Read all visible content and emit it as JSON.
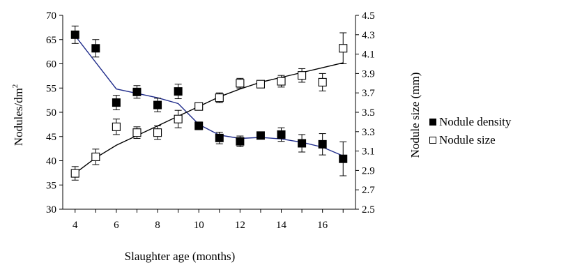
{
  "chart_data": {
    "type": "scatter",
    "xlabel": "Slaughter age (months)",
    "ylabel_left_main": "Nodules/dm",
    "ylabel_left_sup": "2",
    "ylabel_right": "Nodule size (mm)",
    "xlim": [
      3.4,
      17.6
    ],
    "x_ticks": [
      4,
      6,
      8,
      10,
      12,
      14,
      16
    ],
    "y_left_lim": [
      30,
      70
    ],
    "y_left_ticks": [
      30,
      35,
      40,
      45,
      50,
      55,
      60,
      65,
      70
    ],
    "y_right_lim": [
      2.5,
      4.5
    ],
    "y_right_ticks": [
      "2.5",
      "2.7",
      "2.9",
      "3.1",
      "3.3",
      "3.5",
      "3.7",
      "3.9",
      "4.1",
      "4.3",
      "4.5"
    ],
    "grid": false,
    "legend_position": "right",
    "series": [
      {
        "name": "Nodule density",
        "axis": "left",
        "marker": "filled-square",
        "x": [
          4,
          5,
          6,
          7,
          8,
          9,
          10,
          11,
          12,
          13,
          14,
          15,
          16,
          17
        ],
        "y": [
          66.0,
          63.2,
          52.0,
          54.2,
          51.5,
          54.3,
          47.2,
          44.7,
          44.0,
          45.2,
          45.4,
          43.6,
          43.4,
          40.4
        ],
        "err": [
          1.8,
          1.8,
          1.5,
          1.3,
          1.4,
          1.5,
          0.8,
          1.2,
          1.1,
          0.7,
          1.4,
          1.8,
          2.2,
          3.5
        ],
        "trend": {
          "x": [
            4,
            6,
            8,
            9,
            10,
            11,
            12,
            13,
            14,
            15,
            16,
            17
          ],
          "y": [
            65.8,
            54.8,
            53.0,
            51.8,
            47.5,
            45.3,
            44.6,
            44.8,
            44.5,
            43.8,
            42.8,
            41.0
          ]
        }
      },
      {
        "name": "Nodule size",
        "axis": "right",
        "marker": "open-square",
        "x": [
          4,
          5,
          6,
          7,
          8,
          9,
          10,
          11,
          12,
          13,
          14,
          15,
          16,
          17
        ],
        "y": [
          2.87,
          3.04,
          3.35,
          3.29,
          3.29,
          3.43,
          3.56,
          3.65,
          3.8,
          3.79,
          3.82,
          3.88,
          3.81,
          4.16
        ],
        "err": [
          0.07,
          0.08,
          0.08,
          0.06,
          0.07,
          0.09,
          0.03,
          0.05,
          0.05,
          0.03,
          0.06,
          0.07,
          0.09,
          0.16
        ],
        "trend": {
          "x": [
            4,
            5,
            6,
            7,
            8,
            9,
            10,
            11,
            12,
            13,
            14,
            15,
            16,
            17
          ],
          "y": [
            2.87,
            3.03,
            3.16,
            3.26,
            3.36,
            3.46,
            3.56,
            3.66,
            3.74,
            3.81,
            3.86,
            3.91,
            3.96,
            4.01
          ]
        }
      }
    ]
  },
  "colors": {
    "trend_density": "#1f2b8a",
    "trend_size": "#000000",
    "axis": "#000000"
  }
}
